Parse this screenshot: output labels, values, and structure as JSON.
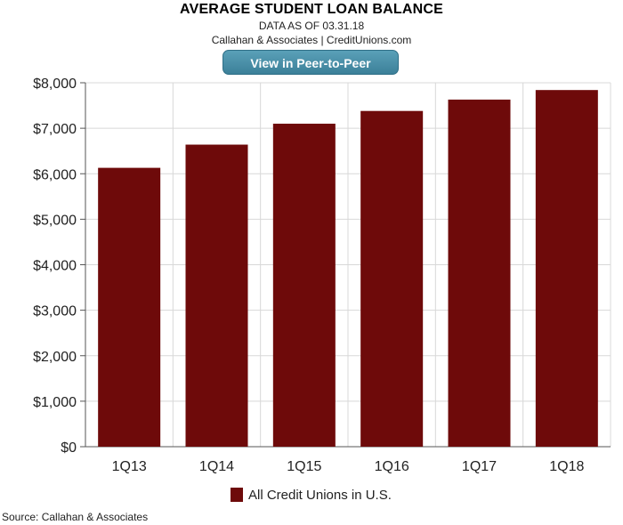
{
  "header": {
    "title": "AVERAGE STUDENT LOAN BALANCE",
    "data_date": "DATA AS OF 03.31.18",
    "credit": "Callahan & Associates | CreditUnions.com"
  },
  "button": {
    "label": "View in Peer-to-Peer"
  },
  "footer": {
    "source": "Source: Callahan & Associates"
  },
  "colors": {
    "bar": "#6e0a0a",
    "grid": "#d8d8d8",
    "button": "#4a90a8"
  },
  "chart_data": {
    "type": "bar",
    "categories": [
      "1Q13",
      "1Q14",
      "1Q15",
      "1Q16",
      "1Q17",
      "1Q18"
    ],
    "series": [
      {
        "name": "All Credit Unions in U.S.",
        "values": [
          6130,
          6640,
          7100,
          7380,
          7630,
          7840
        ]
      }
    ],
    "ylim": [
      0,
      8000
    ],
    "yticks": [
      0,
      1000,
      2000,
      3000,
      4000,
      5000,
      6000,
      7000,
      8000
    ],
    "ytick_labels": [
      "$0",
      "$1,000",
      "$2,000",
      "$3,000",
      "$4,000",
      "$5,000",
      "$6,000",
      "$7,000",
      "$8,000"
    ],
    "grid": true,
    "legend_position": "bottom"
  }
}
